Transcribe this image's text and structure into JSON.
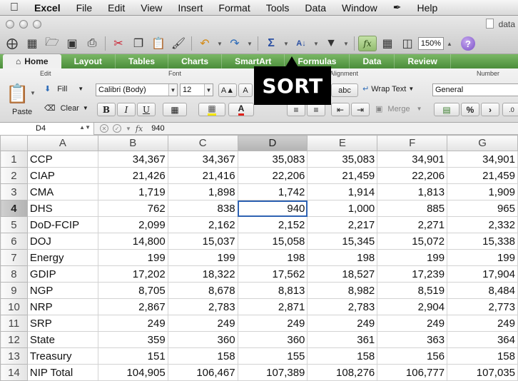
{
  "menubar": {
    "app": "Excel",
    "items": [
      "File",
      "Edit",
      "View",
      "Insert",
      "Format",
      "Tools",
      "Data",
      "Window",
      "Help"
    ]
  },
  "window": {
    "title": "data",
    "zoom": "150%"
  },
  "ribbon": {
    "tabs": [
      "Home",
      "Layout",
      "Tables",
      "Charts",
      "SmartArt",
      "Formulas",
      "Data",
      "Review"
    ],
    "active_tab": "Home",
    "groups": {
      "edit": "Edit",
      "font": "Font",
      "alignment": "Alignment",
      "number": "Number"
    },
    "paste_label": "Paste",
    "fill_label": "Fill",
    "clear_label": "Clear",
    "font_name": "Calibri (Body)",
    "font_size": "12",
    "bold": "B",
    "italic": "I",
    "underline": "U",
    "wrap_text": "Wrap Text",
    "abc": "abc",
    "merge": "Merge",
    "number_format": "General",
    "percent": "%",
    "comma": "›"
  },
  "callout": {
    "text": "SORT"
  },
  "formula_bar": {
    "cell_ref": "D4",
    "fx": "fx",
    "value": "940"
  },
  "sheet": {
    "columns": [
      "A",
      "B",
      "C",
      "D",
      "E",
      "F",
      "G"
    ],
    "selected_col": "D",
    "selected_row": 4,
    "rows": [
      {
        "n": 1,
        "cells": [
          "CCP",
          "34,367",
          "34,367",
          "35,083",
          "35,083",
          "34,901",
          "34,901"
        ]
      },
      {
        "n": 2,
        "cells": [
          "CIAP",
          "21,426",
          "21,416",
          "22,206",
          "21,459",
          "22,206",
          "21,459"
        ]
      },
      {
        "n": 3,
        "cells": [
          "CMA",
          "1,719",
          "1,898",
          "1,742",
          "1,914",
          "1,813",
          "1,909"
        ]
      },
      {
        "n": 4,
        "cells": [
          "DHS",
          "762",
          "838",
          "940",
          "1,000",
          "885",
          "965"
        ]
      },
      {
        "n": 5,
        "cells": [
          "DoD-FCIP",
          "2,099",
          "2,162",
          "2,152",
          "2,217",
          "2,271",
          "2,332"
        ]
      },
      {
        "n": 6,
        "cells": [
          "DOJ",
          "14,800",
          "15,037",
          "15,058",
          "15,345",
          "15,072",
          "15,338"
        ]
      },
      {
        "n": 7,
        "cells": [
          "Energy",
          "199",
          "199",
          "198",
          "198",
          "199",
          "199"
        ]
      },
      {
        "n": 8,
        "cells": [
          "GDIP",
          "17,202",
          "18,322",
          "17,562",
          "18,527",
          "17,239",
          "17,904"
        ]
      },
      {
        "n": 9,
        "cells": [
          "NGP",
          "8,705",
          "8,678",
          "8,813",
          "8,982",
          "8,519",
          "8,484"
        ]
      },
      {
        "n": 10,
        "cells": [
          "NRP",
          "2,867",
          "2,783",
          "2,871",
          "2,783",
          "2,904",
          "2,773"
        ]
      },
      {
        "n": 11,
        "cells": [
          "SRP",
          "249",
          "249",
          "249",
          "249",
          "249",
          "249"
        ]
      },
      {
        "n": 12,
        "cells": [
          "State",
          "359",
          "360",
          "360",
          "361",
          "363",
          "364"
        ]
      },
      {
        "n": 13,
        "cells": [
          "Treasury",
          "151",
          "158",
          "155",
          "158",
          "156",
          "158"
        ]
      },
      {
        "n": 14,
        "cells": [
          "NIP Total",
          "104,905",
          "106,467",
          "107,389",
          "108,276",
          "106,777",
          "107,035"
        ]
      }
    ]
  }
}
